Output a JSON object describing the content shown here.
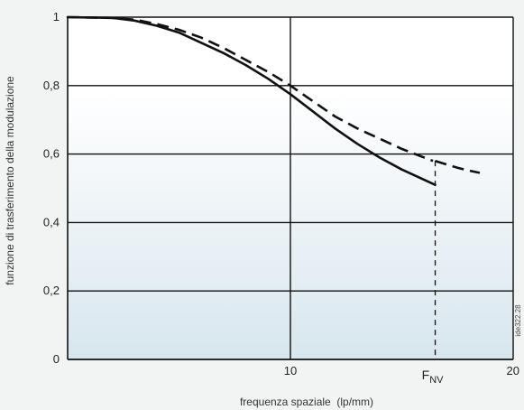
{
  "chart_data": {
    "type": "line",
    "xlabel": "frequenza spaziale  (lp/mm)",
    "ylabel": "funzione di trasferimento della modulazione",
    "xlim": [
      0,
      20
    ],
    "ylim": [
      0,
      1
    ],
    "grid": true,
    "x_ticks": [
      {
        "value": 10,
        "label": "10"
      },
      {
        "value": 20,
        "label": "20"
      }
    ],
    "y_ticks": [
      {
        "value": 0,
        "label": "0"
      },
      {
        "value": 0.2,
        "label": "0,2"
      },
      {
        "value": 0.4,
        "label": "0,4"
      },
      {
        "value": 0.6,
        "label": "0,6"
      },
      {
        "value": 0.8,
        "label": "0,8"
      },
      {
        "value": 1,
        "label": "1"
      }
    ],
    "series": [
      {
        "style": "solid",
        "color": "#111111",
        "x": [
          0,
          2,
          3,
          4,
          5,
          6,
          7,
          8,
          9,
          10,
          11,
          12,
          13,
          14,
          15,
          16.5
        ],
        "y": [
          1.0,
          0.998,
          0.99,
          0.975,
          0.955,
          0.925,
          0.895,
          0.86,
          0.82,
          0.775,
          0.725,
          0.675,
          0.63,
          0.59,
          0.555,
          0.51
        ]
      },
      {
        "style": "dashed",
        "color": "#111111",
        "x": [
          0,
          2,
          3,
          4,
          5,
          6,
          7,
          8,
          9,
          10,
          11,
          12,
          13,
          14,
          15,
          16.4
        ],
        "y": [
          1.0,
          0.998,
          0.993,
          0.98,
          0.963,
          0.94,
          0.91,
          0.875,
          0.84,
          0.8,
          0.755,
          0.71,
          0.675,
          0.645,
          0.615,
          0.58
        ]
      },
      {
        "style": "dashed",
        "color": "#111111",
        "x": [
          16.5,
          17,
          17.5,
          18,
          18.5
        ],
        "y": [
          0.58,
          0.57,
          0.56,
          0.552,
          0.545
        ]
      }
    ],
    "annotations": [
      {
        "text": "F",
        "subscript": "NV",
        "x": 16.5,
        "y": 0
      }
    ],
    "figure_code": "ide322.28",
    "colors": {
      "plot_background_top": "#ffffff",
      "plot_background_bottom": "#d8e6ee",
      "grid": "#111111",
      "line": "#111111"
    }
  }
}
